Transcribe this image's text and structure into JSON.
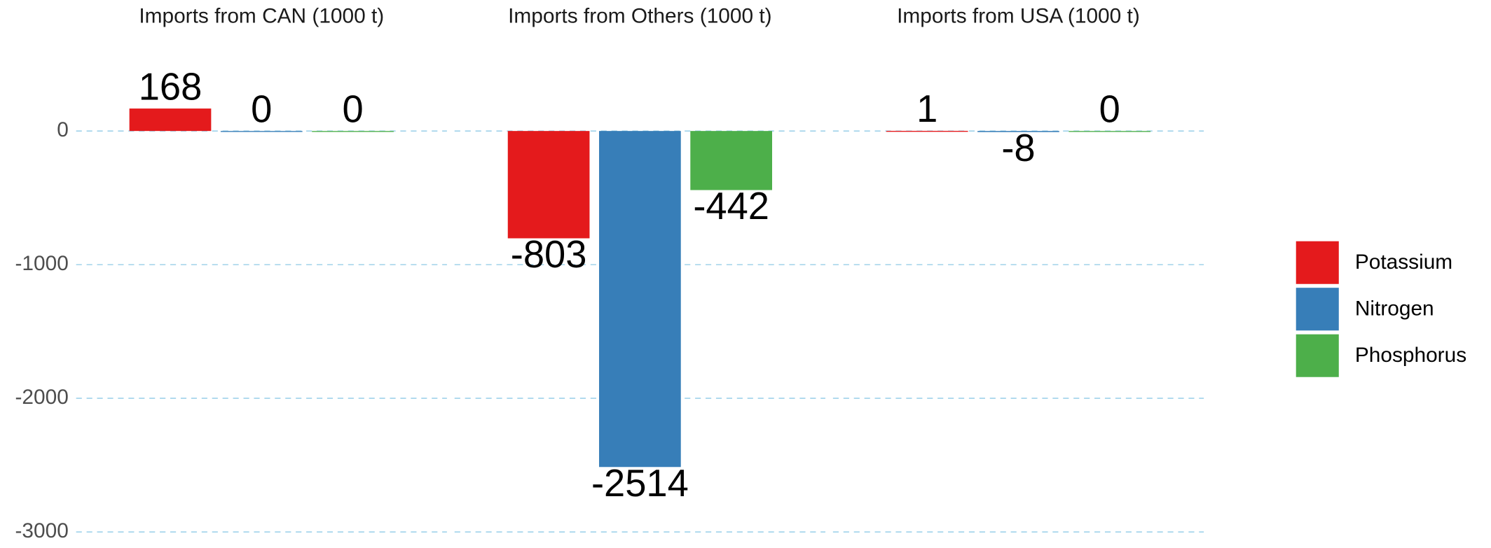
{
  "chart_data": {
    "type": "bar",
    "categories": [
      "Imports from CAN (1000 t)",
      "Imports from Others (1000 t)",
      "Imports from USA (1000 t)"
    ],
    "series": [
      {
        "name": "Potassium",
        "color": "#e41a1c",
        "values": [
          168,
          -803,
          1
        ]
      },
      {
        "name": "Nitrogen",
        "color": "#377eb8",
        "values": [
          0,
          -2514,
          -8
        ]
      },
      {
        "name": "Phosphorus",
        "color": "#4daf4a",
        "values": [
          0,
          -442,
          0
        ]
      }
    ],
    "ylim": [
      -3120,
      980
    ],
    "yticks": [
      0,
      -1000,
      -2000,
      -3000
    ],
    "grid": true,
    "legend": "right"
  }
}
